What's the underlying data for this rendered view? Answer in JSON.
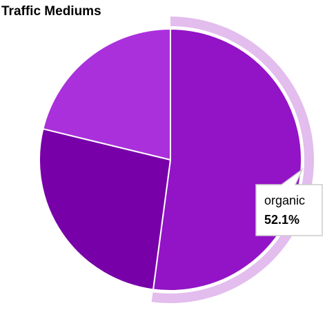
{
  "chart_data": {
    "type": "pie",
    "title": "Traffic Mediums",
    "categories": [
      "organic",
      null,
      null
    ],
    "values": [
      52.1,
      26.7,
      21.2
    ],
    "value_labels": [
      "52.1%",
      null,
      null
    ],
    "colors": [
      "#9313c6",
      "#7800a8",
      "#aa30dc"
    ],
    "highlight_color": "#e3bdee"
  }
}
